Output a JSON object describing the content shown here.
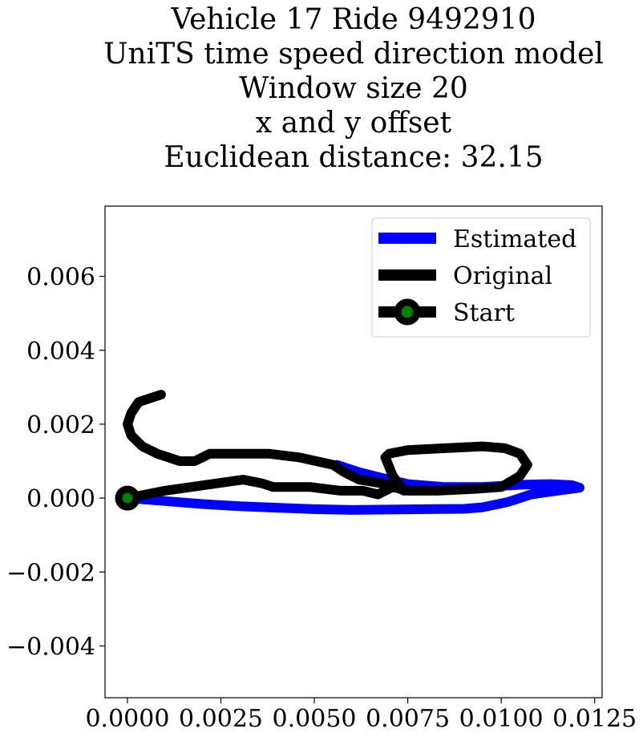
{
  "chart_data": {
    "type": "line",
    "title_lines": [
      "Vehicle 17 Ride 9492910",
      "UniTS time speed direction model",
      "Window size 20",
      "x and y offset",
      "Euclidean distance: 32.15"
    ],
    "xlabel": "",
    "ylabel": "",
    "xlim": [
      -0.0006,
      0.0127
    ],
    "ylim": [
      -0.0054,
      0.0079
    ],
    "xticks": [
      0.0,
      0.0025,
      0.005,
      0.0075,
      0.01,
      0.0125
    ],
    "xtick_labels": [
      "0.0000",
      "0.0025",
      "0.0050",
      "0.0075",
      "0.0100",
      "0.0125"
    ],
    "yticks": [
      -0.004,
      -0.002,
      0.0,
      0.002,
      0.004,
      0.006
    ],
    "ytick_labels": [
      "−0.004",
      "−0.002",
      "0.000",
      "0.002",
      "0.004",
      "0.006"
    ],
    "grid": false,
    "legend_position": "top-right",
    "series": [
      {
        "name": "Estimated",
        "color": "#0000ff",
        "x": [
          0.0,
          0.001,
          0.002,
          0.003,
          0.004,
          0.005,
          0.006,
          0.007,
          0.008,
          0.009,
          0.0095,
          0.0102,
          0.0108,
          0.0115,
          0.0121,
          0.0119,
          0.0113,
          0.0105,
          0.0095,
          0.0085,
          0.0075,
          0.0068,
          0.0062,
          0.0056
        ],
        "y": [
          0.0,
          -8e-05,
          -0.00016,
          -0.00022,
          -0.00026,
          -0.0003,
          -0.00032,
          -0.00031,
          -0.0003,
          -0.00029,
          -0.00025,
          -0.0001,
          0.0001,
          0.0002,
          0.00028,
          0.00035,
          0.00038,
          0.00036,
          0.0003,
          0.0003,
          0.00038,
          0.00055,
          0.0007,
          0.0009
        ]
      },
      {
        "name": "Original",
        "color": "#000000",
        "x": [
          0.0009,
          0.0006,
          0.0003,
          0.0001,
          0.0,
          0.0001,
          0.0004,
          0.0008,
          0.0014,
          0.0018,
          0.0022,
          0.0028,
          0.0038,
          0.0046,
          0.0055,
          0.0058,
          0.0062,
          0.0068,
          0.0072,
          0.0074,
          0.0071,
          0.0069,
          0.007,
          0.0075,
          0.0085,
          0.0095,
          0.0101,
          0.0105,
          0.0107,
          0.0105,
          0.01,
          0.0093,
          0.0083,
          0.0075,
          0.0071,
          0.0069,
          0.0067,
          0.0063,
          0.0057,
          0.0049,
          0.0046,
          0.0042,
          0.0039,
          0.0036,
          0.0031,
          0.0024,
          0.0017,
          0.001,
          0.0005,
          0.0
        ],
        "y": [
          0.0028,
          0.0027,
          0.0026,
          0.0023,
          0.002,
          0.0017,
          0.0014,
          0.0012,
          0.001,
          0.001,
          0.0012,
          0.0012,
          0.0012,
          0.0011,
          0.0009,
          0.0007,
          0.0005,
          0.0004,
          0.0003,
          0.0002,
          0.0006,
          0.0011,
          0.0012,
          0.0013,
          0.00135,
          0.0014,
          0.00135,
          0.0012,
          0.0009,
          0.0006,
          0.0003,
          0.00025,
          0.0002,
          0.0002,
          0.0003,
          0.0002,
          0.0001,
          0.0002,
          0.0002,
          0.0003,
          0.0003,
          0.0003,
          0.0003,
          0.0004,
          0.0005,
          0.0004,
          0.0003,
          0.0002,
          0.0001,
          0.0
        ]
      },
      {
        "name": "Start",
        "color": "#000000",
        "marker_fill": "#008000",
        "x": [
          0.0
        ],
        "y": [
          0.0
        ]
      }
    ]
  }
}
